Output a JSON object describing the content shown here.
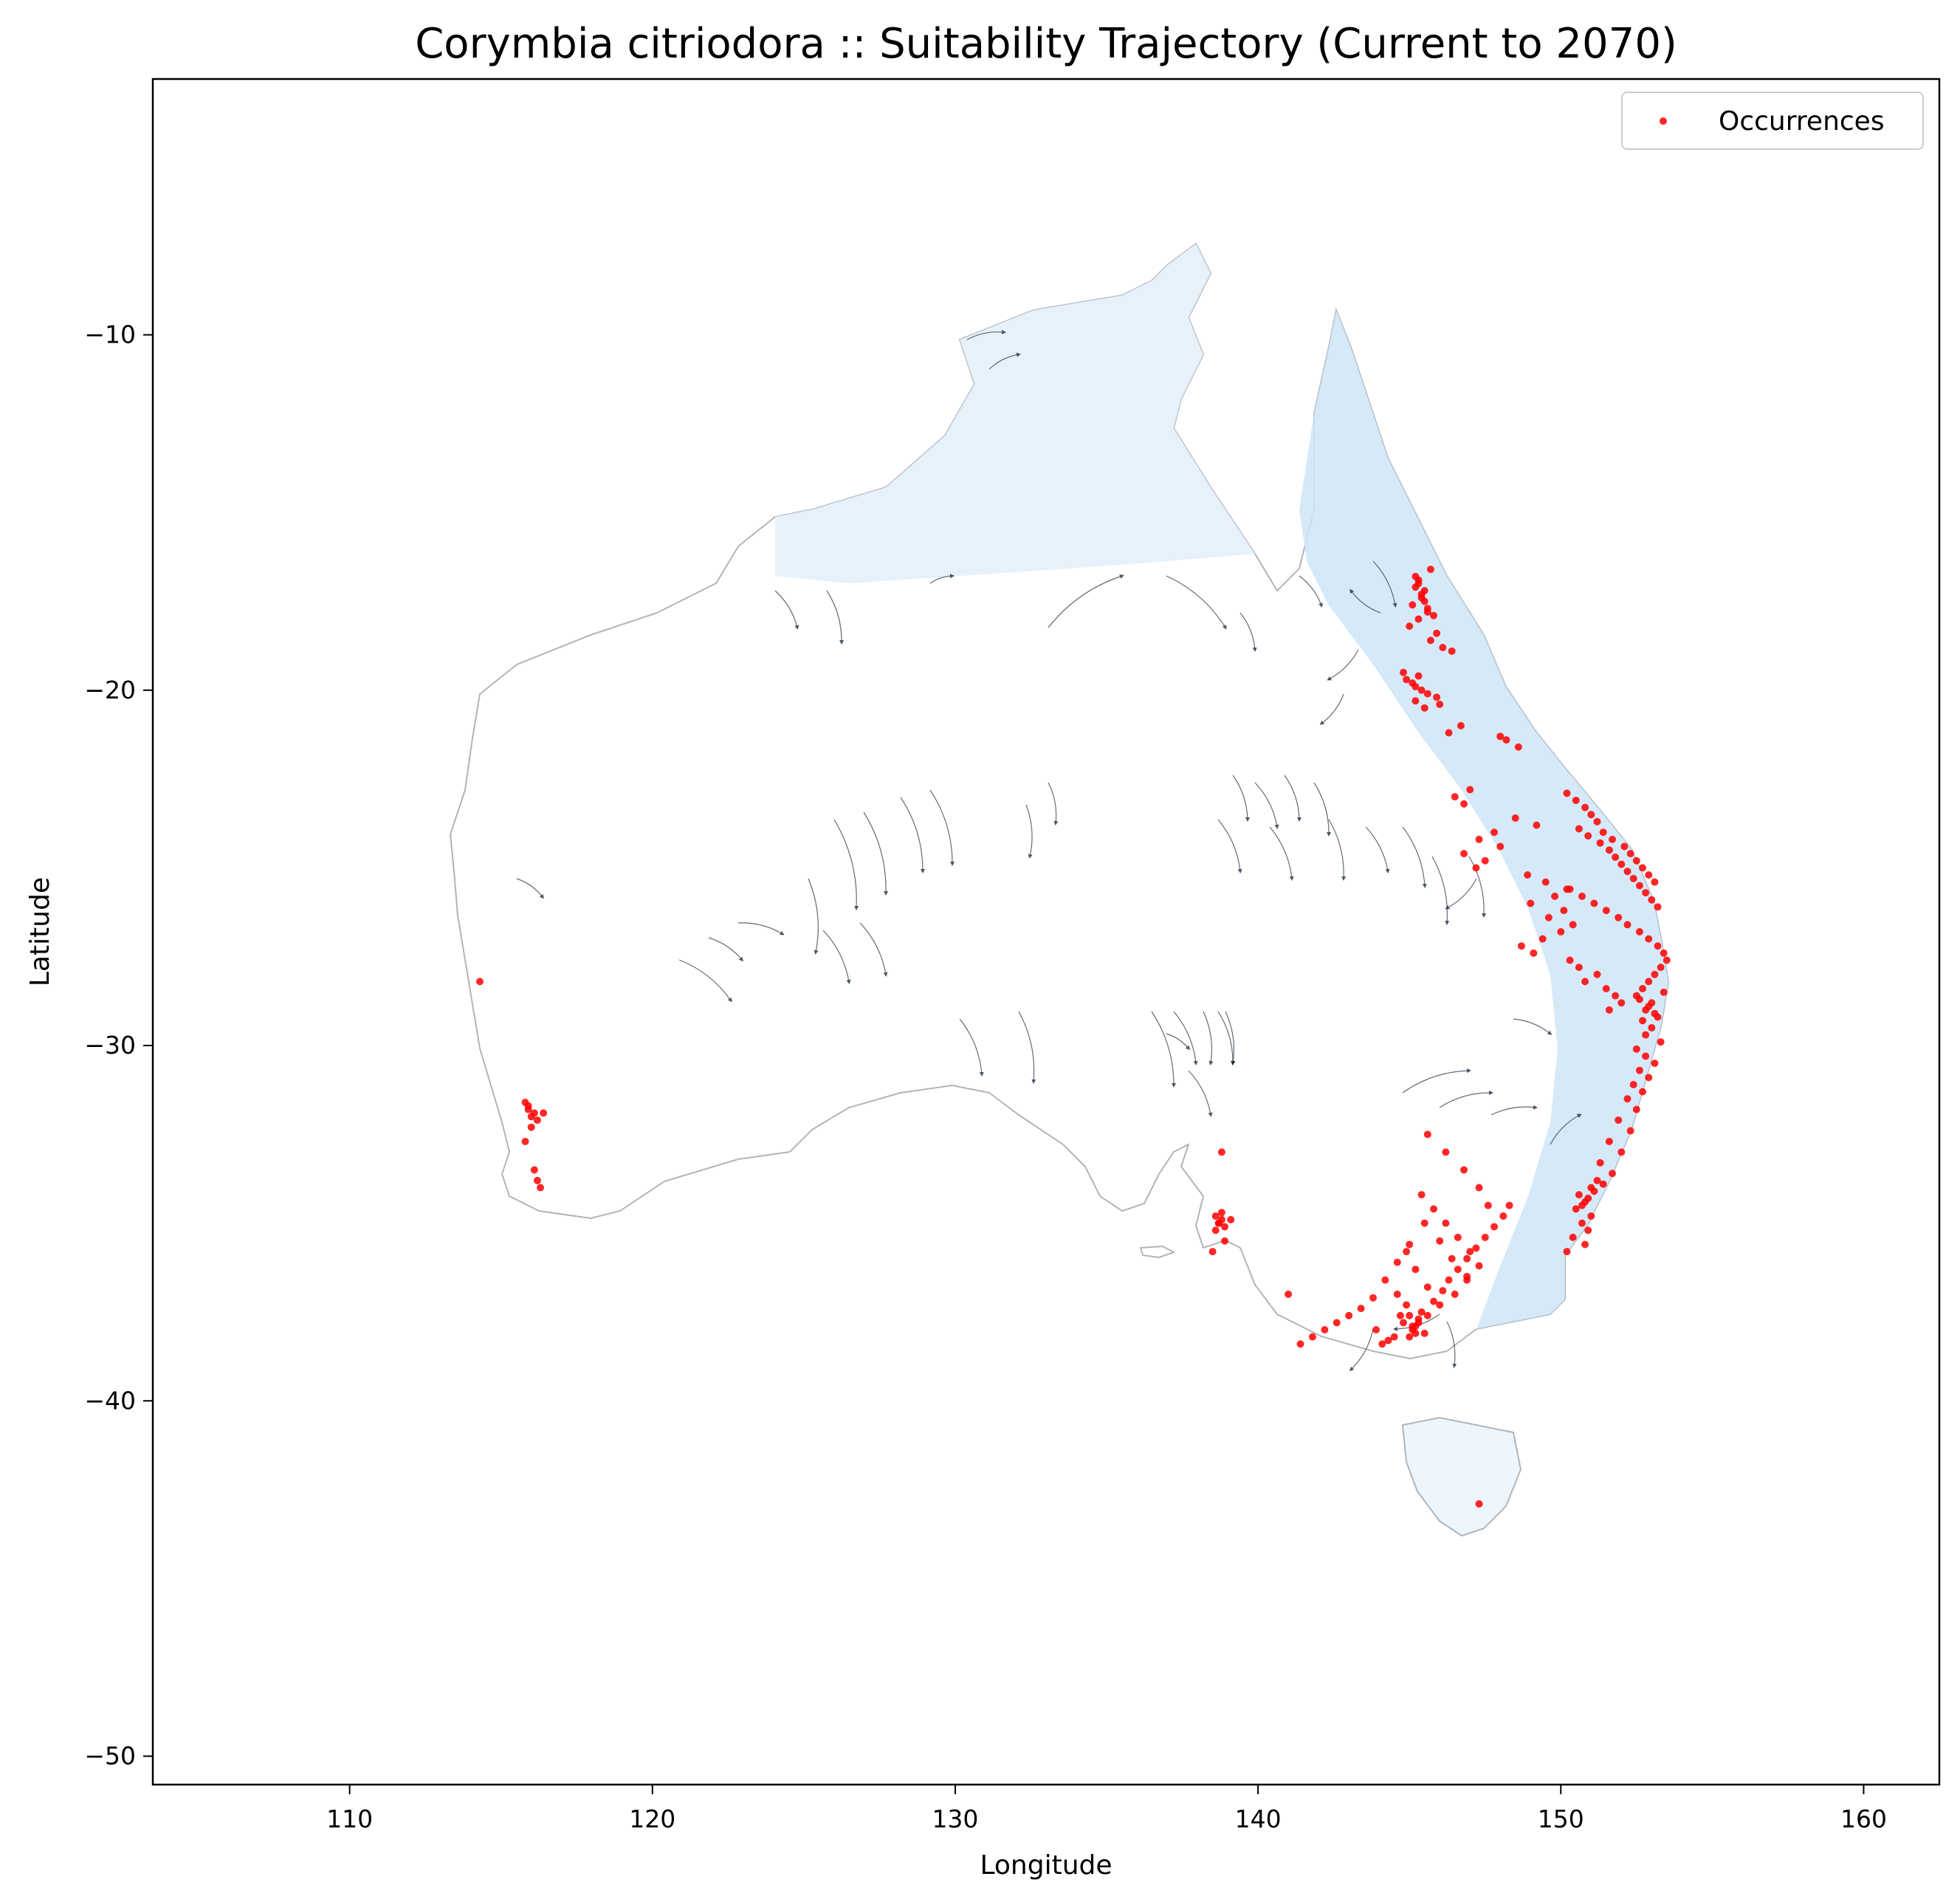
{
  "chart_data": {
    "type": "scatter",
    "title": "Corymbia citriodora :: Suitability Trajectory (Current to 2070)",
    "xlabel": "Longitude",
    "ylabel": "Latitude",
    "xlim": [
      103.5,
      162.5
    ],
    "ylim": [
      -50.8,
      -2.8
    ],
    "xticks": [
      110,
      120,
      130,
      140,
      150,
      160
    ],
    "yticks": [
      -10,
      -20,
      -30,
      -40,
      -50
    ],
    "xtick_labels": [
      "110",
      "120",
      "130",
      "140",
      "150",
      "160"
    ],
    "ytick_labels": [
      "−10",
      "−20",
      "−30",
      "−40",
      "−50"
    ],
    "grid": false,
    "legend_position": "top-right",
    "colors": {
      "occurrence": "#ff0000",
      "suitability_low": "#ffffff",
      "suitability_high": "#b8d9f5",
      "coastline": "#b0b5bb",
      "trajectory_arrow": "#0c1e33"
    },
    "series": [
      {
        "name": "Occurrences",
        "x": [
          145.2,
          145.3,
          145.5,
          145.4,
          145.1,
          145.6,
          145.3,
          145.7,
          145.2,
          145.4,
          145.5,
          145.6,
          145.3,
          145.8,
          145.0,
          145.9,
          146.1,
          146.4,
          145.7,
          144.8,
          144.9,
          145.2,
          145.3,
          145.1,
          145.4,
          145.2,
          145.6,
          145.5,
          145.9,
          146.0,
          146.7,
          146.3,
          148.0,
          148.2,
          148.6,
          150.2,
          150.5,
          150.8,
          151.0,
          151.2,
          150.6,
          150.9,
          151.3,
          151.6,
          151.8,
          152.0,
          152.2,
          152.4,
          152.6,
          152.8,
          153.0,
          153.2,
          151.4,
          151.7,
          152.1,
          152.3,
          152.5,
          152.7,
          152.9,
          153.1,
          150.3,
          150.7,
          151.1,
          151.5,
          151.9,
          152.2,
          152.6,
          152.9,
          153.2,
          153.4,
          153.5,
          153.3,
          153.1,
          152.9,
          152.7,
          152.5,
          153.0,
          152.8,
          153.2,
          153.4,
          152.6,
          152.9,
          153.1,
          152.7,
          153.0,
          152.8,
          153.3,
          152.5,
          152.8,
          153.1,
          152.6,
          152.9,
          152.4,
          152.7,
          152.2,
          152.5,
          151.9,
          152.3,
          151.6,
          152.0,
          151.3,
          151.7,
          151.4,
          151.1,
          150.9,
          150.7,
          151.2,
          151.0,
          150.6,
          150.8,
          150.5,
          151.0,
          150.7,
          150.9,
          150.4,
          150.8,
          150.2,
          148.5,
          149.2,
          147.8,
          147.3,
          148.0,
          146.8,
          147.5,
          147.2,
          148.9,
          149.5,
          150.2,
          149.8,
          149.0,
          150.1,
          149.6,
          150.4,
          150.0,
          149.4,
          148.7,
          149.1,
          150.3,
          150.6,
          151.2,
          150.8,
          151.5,
          151.8,
          152.0,
          151.6,
          146.5,
          146.8,
          147.0,
          145.6,
          146.2,
          146.8,
          147.3,
          147.6,
          145.5,
          146.0,
          146.4,
          146.9,
          144.6,
          144.9,
          145.2,
          145.6,
          146.0,
          146.5,
          146.9,
          147.3,
          147.0,
          146.6,
          146.2,
          145.8,
          145.4,
          145.0,
          144.6,
          144.2,
          143.8,
          143.4,
          143.0,
          142.6,
          142.2,
          141.8,
          141.4,
          141.0,
          144.9,
          145.0,
          145.1,
          145.2,
          145.3,
          145.4,
          144.8,
          145.5,
          145.2,
          145.0,
          144.7,
          145.3,
          145.1,
          144.5,
          144.3,
          144.1,
          143.9,
          145.6,
          145.8,
          146.1,
          146.3,
          146.6,
          146.9,
          147.2,
          147.5,
          147.8,
          148.1,
          148.3,
          138.6,
          138.7,
          138.8,
          138.9,
          138.6,
          138.8,
          138.7,
          139.1,
          138.9,
          138.5,
          115.8,
          115.9,
          116.0,
          116.1,
          116.2,
          115.9,
          116.0,
          115.8,
          116.1,
          116.2,
          116.3,
          116.4,
          114.3,
          138.8,
          147.3
        ],
        "y": [
          -16.8,
          -17.0,
          -17.2,
          -17.4,
          -17.6,
          -17.8,
          -18.0,
          -16.6,
          -17.1,
          -17.3,
          -17.5,
          -17.7,
          -16.9,
          -17.9,
          -18.2,
          -18.4,
          -18.8,
          -18.9,
          -18.6,
          -19.5,
          -19.7,
          -19.9,
          -19.6,
          -19.8,
          -20.0,
          -20.3,
          -20.1,
          -20.5,
          -20.2,
          -20.4,
          -21.0,
          -21.2,
          -21.3,
          -21.4,
          -21.6,
          -22.9,
          -23.1,
          -23.3,
          -23.5,
          -23.7,
          -23.9,
          -24.1,
          -24.3,
          -24.5,
          -24.7,
          -24.9,
          -25.1,
          -25.3,
          -25.5,
          -25.7,
          -25.9,
          -26.1,
          -24.0,
          -24.2,
          -24.4,
          -24.6,
          -24.8,
          -25.0,
          -25.2,
          -25.4,
          -25.6,
          -25.8,
          -26.0,
          -26.2,
          -26.4,
          -26.6,
          -26.8,
          -27.0,
          -27.2,
          -27.4,
          -27.6,
          -27.8,
          -28.0,
          -28.2,
          -28.4,
          -28.6,
          -28.8,
          -29.0,
          -29.2,
          -28.5,
          -28.7,
          -28.9,
          -29.1,
          -29.3,
          -29.5,
          -29.7,
          -29.9,
          -30.1,
          -30.3,
          -30.5,
          -30.7,
          -30.9,
          -31.1,
          -31.3,
          -31.5,
          -31.8,
          -32.1,
          -32.4,
          -32.7,
          -33.0,
          -33.3,
          -33.6,
          -33.9,
          -34.1,
          -34.3,
          -34.5,
          -33.8,
          -34.0,
          -34.2,
          -34.4,
          -34.6,
          -34.8,
          -35.0,
          -35.2,
          -35.4,
          -35.6,
          -35.8,
          -23.6,
          -23.8,
          -24.0,
          -24.2,
          -24.4,
          -24.6,
          -24.8,
          -25.0,
          -25.2,
          -25.4,
          -25.6,
          -25.8,
          -26.0,
          -26.2,
          -26.4,
          -26.6,
          -26.8,
          -27.0,
          -27.2,
          -27.4,
          -27.6,
          -27.8,
          -28.0,
          -28.2,
          -28.4,
          -28.6,
          -28.8,
          -29.0,
          -23.0,
          -23.2,
          -22.8,
          -32.5,
          -33.0,
          -33.5,
          -34.0,
          -34.5,
          -35.0,
          -35.5,
          -36.0,
          -36.5,
          -37.0,
          -35.8,
          -36.3,
          -36.8,
          -37.3,
          -37.0,
          -36.6,
          -36.2,
          -35.8,
          -35.4,
          -35.0,
          -34.6,
          -34.2,
          -35.6,
          -36.1,
          -36.6,
          -37.1,
          -37.4,
          -37.6,
          -37.8,
          -38.0,
          -38.2,
          -38.4,
          -37.0,
          -37.3,
          -37.6,
          -37.9,
          -38.1,
          -37.7,
          -37.5,
          -37.8,
          -38.1,
          -37.9,
          -38.2,
          -37.6,
          -37.8,
          -38.0,
          -38.2,
          -38.3,
          -38.4,
          -38.0,
          -37.6,
          -37.2,
          -36.9,
          -36.6,
          -36.3,
          -36.0,
          -35.7,
          -35.4,
          -35.1,
          -34.8,
          -34.5,
          -34.8,
          -35.0,
          -34.9,
          -35.1,
          -35.2,
          -34.7,
          -35.0,
          -34.9,
          -35.5,
          -35.8,
          -31.6,
          -31.8,
          -32.0,
          -31.9,
          -32.1,
          -31.7,
          -32.3,
          -32.7,
          -33.5,
          -33.8,
          -34.0,
          -31.9,
          -28.2,
          -33.0,
          -42.9
        ]
      }
    ],
    "legend": [
      "Occurrences"
    ]
  }
}
